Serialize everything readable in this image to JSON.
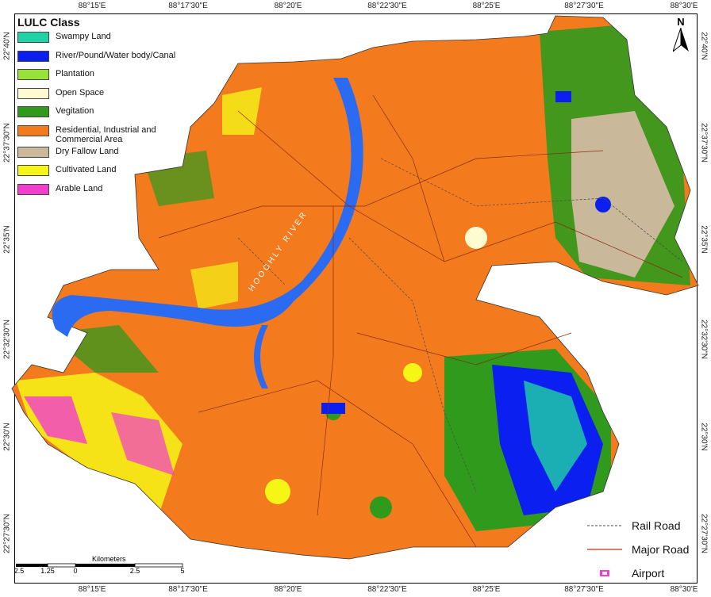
{
  "axes": {
    "longitude_labels": [
      "88°15'E",
      "88°17'30\"E",
      "88°20'E",
      "88°22'30\"E",
      "88°25'E",
      "88°27'30\"E",
      "88°30'E"
    ],
    "latitude_labels": [
      "22°40'N",
      "22°37'30\"N",
      "22°35'N",
      "22°32'30\"N",
      "22°30'N",
      "22°27'30\"N"
    ]
  },
  "legend": {
    "title": "LULC Class",
    "items": [
      {
        "label": "Swampy Land",
        "color": "#1fd3a4"
      },
      {
        "label": "River/Pound/Water body/Canal",
        "color": "#0a1ff0"
      },
      {
        "label": "Plantation",
        "color": "#98e23a"
      },
      {
        "label": "Open Space",
        "color": "#fdfbcf"
      },
      {
        "label": "Vegitation",
        "color": "#2f9a1c"
      },
      {
        "label": "Residential, Industrial and Commercial Area",
        "color": "#f47a1e"
      },
      {
        "label": "Dry Fallow Land",
        "color": "#c9b99a"
      },
      {
        "label": "Cultivated Land",
        "color": "#f5f516"
      },
      {
        "label": "Arable Land",
        "color": "#f23dcf"
      }
    ]
  },
  "line_legend": {
    "rail_road": "Rail Road",
    "major_road": "Major Road",
    "airport": "Airport"
  },
  "north_arrow": {
    "label": "N"
  },
  "scale_bar": {
    "title": "Kilometers",
    "ticks": [
      "2.5",
      "1.25",
      "0",
      "2.5",
      "5"
    ]
  },
  "river_label": "HOOGHLY RIVER"
}
